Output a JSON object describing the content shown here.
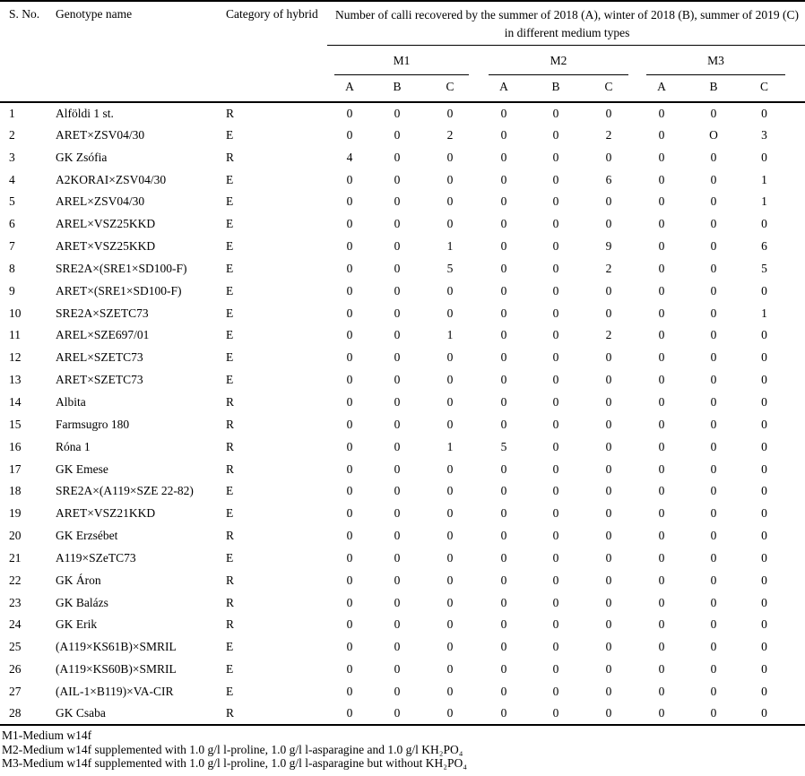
{
  "table": {
    "headers": {
      "sno": "S. No.",
      "genotype": "Genotype name",
      "category": "Category of hybrid",
      "span": "Number of calli recovered by the summer of 2018 (A), winter of 2018 (B), summer of 2019 (C) in different medium types"
    },
    "medium_groups": [
      "M1",
      "M2",
      "M3"
    ],
    "subcols": [
      "A",
      "B",
      "C"
    ],
    "rows": [
      {
        "no": "1",
        "name": "Alföldi 1 st.",
        "cat": "R",
        "vals": [
          "0",
          "0",
          "0",
          "0",
          "0",
          "0",
          "0",
          "0",
          "0"
        ]
      },
      {
        "no": "2",
        "name": "ARET×ZSV04/30",
        "cat": "E",
        "vals": [
          "0",
          "0",
          "2",
          "0",
          "0",
          "2",
          "0",
          "O",
          "3"
        ]
      },
      {
        "no": "3",
        "name": "GK Zsófia",
        "cat": "R",
        "vals": [
          "4",
          "0",
          "0",
          "0",
          "0",
          "0",
          "0",
          "0",
          "0"
        ]
      },
      {
        "no": "4",
        "name": "A2KORAI×ZSV04/30",
        "cat": "E",
        "vals": [
          "0",
          "0",
          "0",
          "0",
          "0",
          "6",
          "0",
          "0",
          "1"
        ]
      },
      {
        "no": "5",
        "name": "AREL×ZSV04/30",
        "cat": "E",
        "vals": [
          "0",
          "0",
          "0",
          "0",
          "0",
          "0",
          "0",
          "0",
          "1"
        ]
      },
      {
        "no": "6",
        "name": "AREL×VSZ25KKD",
        "cat": "E",
        "vals": [
          "0",
          "0",
          "0",
          "0",
          "0",
          "0",
          "0",
          "0",
          "0"
        ]
      },
      {
        "no": "7",
        "name": "ARET×VSZ25KKD",
        "cat": "E",
        "vals": [
          "0",
          "0",
          "1",
          "0",
          "0",
          "9",
          "0",
          "0",
          "6"
        ]
      },
      {
        "no": "8",
        "name": "SRE2A×(SRE1×SD100-F)",
        "cat": "E",
        "vals": [
          "0",
          "0",
          "5",
          "0",
          "0",
          "2",
          "0",
          "0",
          "5"
        ]
      },
      {
        "no": "9",
        "name": "ARET×(SRE1×SD100-F)",
        "cat": "E",
        "vals": [
          "0",
          "0",
          "0",
          "0",
          "0",
          "0",
          "0",
          "0",
          "0"
        ]
      },
      {
        "no": "10",
        "name": "SRE2A×SZETC73",
        "cat": "E",
        "vals": [
          "0",
          "0",
          "0",
          "0",
          "0",
          "0",
          "0",
          "0",
          "1"
        ]
      },
      {
        "no": "11",
        "name": "AREL×SZE697/01",
        "cat": "E",
        "vals": [
          "0",
          "0",
          "1",
          "0",
          "0",
          "2",
          "0",
          "0",
          "0"
        ]
      },
      {
        "no": "12",
        "name": "AREL×SZETC73",
        "cat": "E",
        "vals": [
          "0",
          "0",
          "0",
          "0",
          "0",
          "0",
          "0",
          "0",
          "0"
        ]
      },
      {
        "no": "13",
        "name": "ARET×SZETC73",
        "cat": "E",
        "vals": [
          "0",
          "0",
          "0",
          "0",
          "0",
          "0",
          "0",
          "0",
          "0"
        ]
      },
      {
        "no": "14",
        "name": "Albita",
        "cat": "R",
        "vals": [
          "0",
          "0",
          "0",
          "0",
          "0",
          "0",
          "0",
          "0",
          "0"
        ]
      },
      {
        "no": "15",
        "name": "Farmsugro 180",
        "cat": "R",
        "vals": [
          "0",
          "0",
          "0",
          "0",
          "0",
          "0",
          "0",
          "0",
          "0"
        ]
      },
      {
        "no": "16",
        "name": "Róna 1",
        "cat": "R",
        "vals": [
          "0",
          "0",
          "1",
          "5",
          "0",
          "0",
          "0",
          "0",
          "0"
        ]
      },
      {
        "no": "17",
        "name": "GK Emese",
        "cat": "R",
        "vals": [
          "0",
          "0",
          "0",
          "0",
          "0",
          "0",
          "0",
          "0",
          "0"
        ]
      },
      {
        "no": "18",
        "name": "SRE2A×(A119×SZE 22-82)",
        "cat": "E",
        "vals": [
          "0",
          "0",
          "0",
          "0",
          "0",
          "0",
          "0",
          "0",
          "0"
        ]
      },
      {
        "no": "19",
        "name": "ARET×VSZ21KKD",
        "cat": "E",
        "vals": [
          "0",
          "0",
          "0",
          "0",
          "0",
          "0",
          "0",
          "0",
          "0"
        ]
      },
      {
        "no": "20",
        "name": "GK Erzsébet",
        "cat": "R",
        "vals": [
          "0",
          "0",
          "0",
          "0",
          "0",
          "0",
          "0",
          "0",
          "0"
        ]
      },
      {
        "no": "21",
        "name": "A119×SZeTC73",
        "cat": "E",
        "vals": [
          "0",
          "0",
          "0",
          "0",
          "0",
          "0",
          "0",
          "0",
          "0"
        ]
      },
      {
        "no": "22",
        "name": "GK Áron",
        "cat": "R",
        "vals": [
          "0",
          "0",
          "0",
          "0",
          "0",
          "0",
          "0",
          "0",
          "0"
        ]
      },
      {
        "no": "23",
        "name": "GK Balázs",
        "cat": "R",
        "vals": [
          "0",
          "0",
          "0",
          "0",
          "0",
          "0",
          "0",
          "0",
          "0"
        ]
      },
      {
        "no": "24",
        "name": "GK Erik",
        "cat": "R",
        "vals": [
          "0",
          "0",
          "0",
          "0",
          "0",
          "0",
          "0",
          "0",
          "0"
        ]
      },
      {
        "no": "25",
        "name": "(A119×KS61B)×SMRIL",
        "cat": "E",
        "vals": [
          "0",
          "0",
          "0",
          "0",
          "0",
          "0",
          "0",
          "0",
          "0"
        ]
      },
      {
        "no": "26",
        "name": "(A119×KS60B)×SMRIL",
        "cat": "E",
        "vals": [
          "0",
          "0",
          "0",
          "0",
          "0",
          "0",
          "0",
          "0",
          "0"
        ]
      },
      {
        "no": "27",
        "name": "(AIL-1×B119)×VA-CIR",
        "cat": "E",
        "vals": [
          "0",
          "0",
          "0",
          "0",
          "0",
          "0",
          "0",
          "0",
          "0"
        ]
      },
      {
        "no": "28",
        "name": "GK Csaba",
        "cat": "R",
        "vals": [
          "0",
          "0",
          "0",
          "0",
          "0",
          "0",
          "0",
          "0",
          "0"
        ]
      }
    ]
  },
  "footnotes": [
    "M1-Medium w14f",
    "M2-Medium w14f supplemented with 1.0 g/l l-proline, 1.0 g/l l-asparagine and 1.0 g/l KH₂PO₄",
    "M3-Medium w14f supplemented with 1.0 g/l l-proline, 1.0 g/l l-asparagine but without KH₂PO₄"
  ]
}
